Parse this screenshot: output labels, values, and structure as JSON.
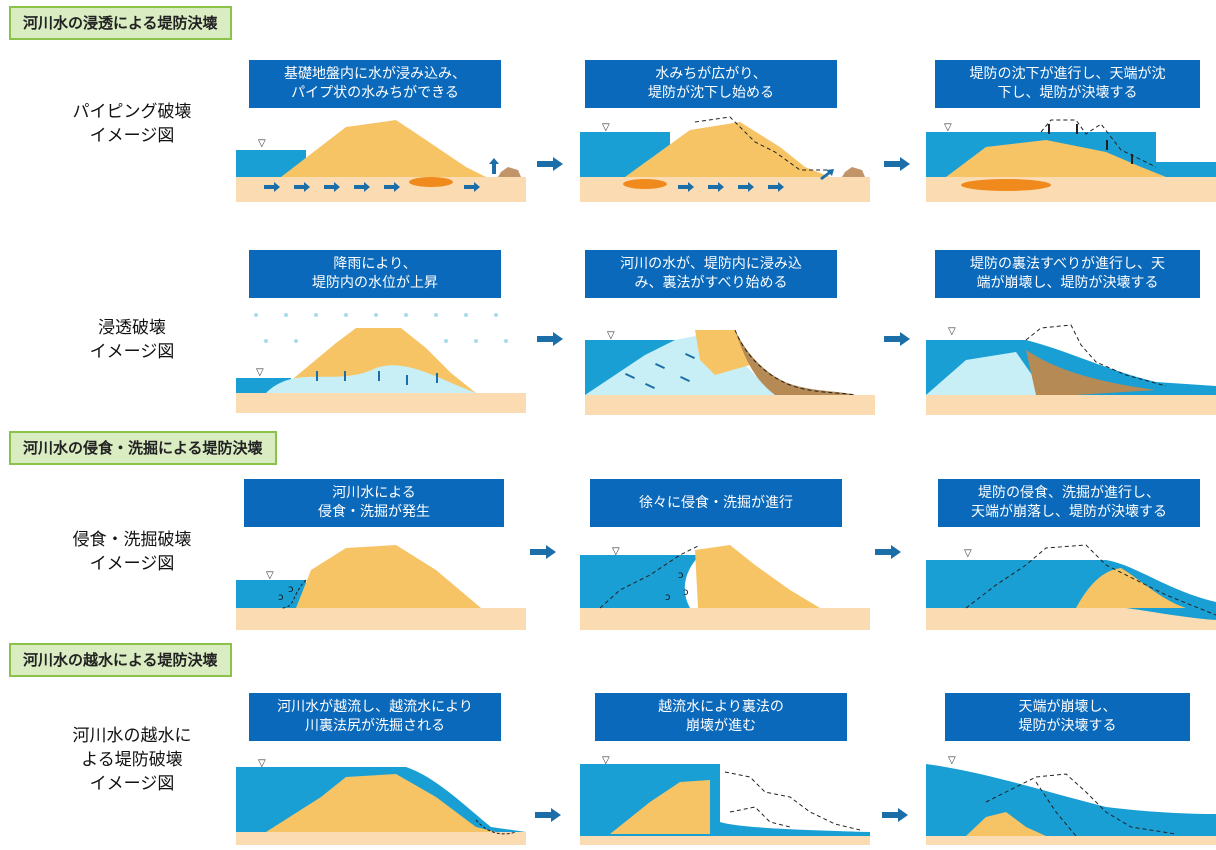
{
  "sections": {
    "seepage": "河川水の浸透による堤防決壊",
    "erosion": "河川水の侵食・洗掘による堤防決壊",
    "overflow": "河川水の越水による堤防決壊"
  },
  "rows": {
    "piping": {
      "label": "パイピング破壊\nイメージ図",
      "steps": [
        "基礎地盤内に水が浸み込み、\nパイプ状の水みちができる",
        "水みちが広がり、\n堤防が沈下し始める",
        "堤防の沈下が進行し、天端が沈\n下し、堤防が決壊する"
      ]
    },
    "seepage": {
      "label": "浸透破壊\nイメージ図",
      "steps": [
        "降雨により、\n堤防内の水位が上昇",
        "河川の水が、堤防内に浸み込\nみ、裏法がすべり始める",
        "堤防の裏法すべりが進行し、天\n端が崩壊し、堤防が決壊する"
      ]
    },
    "erosion": {
      "label": "侵食・洗掘破壊\nイメージ図",
      "steps": [
        "河川水による\n侵食・洗掘が発生",
        "徐々に侵食・洗掘が進行",
        "堤防の侵食、洗掘が進行し、\n天端が崩落し、堤防が決壊する"
      ]
    },
    "overflow": {
      "label": "河川水の越水に\nよる堤防破壊\nイメージ図",
      "steps": [
        "河川水が越流し、越流水により\n川裏法尻が洗掘される",
        "越流水により裏法の\n崩壊が進む",
        "天端が崩壊し、\n堤防が決壊する"
      ]
    }
  },
  "water_level_symbol": "▽",
  "colors": {
    "water": "#1a9fd5",
    "levee": "#f7c465",
    "ground": "#fbdcb2",
    "box": "#0b69bb",
    "arrow": "#1b6ea8",
    "light_water": "#c7eff5",
    "debris": "#b58a55"
  }
}
